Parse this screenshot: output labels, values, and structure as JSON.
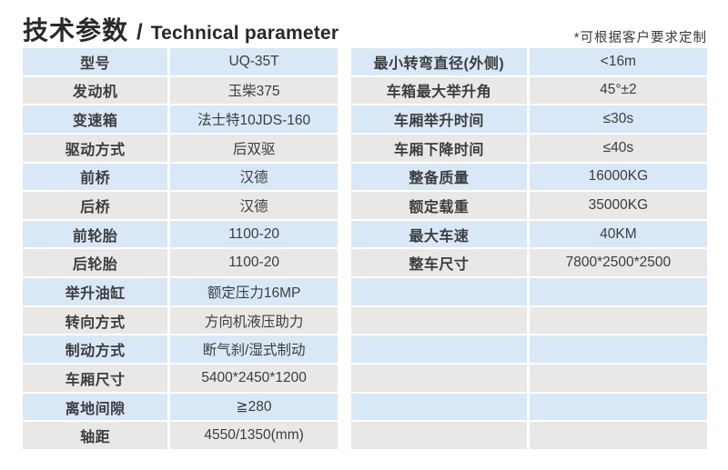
{
  "header": {
    "title_zh": "技术参数",
    "title_sep": "/",
    "title_en": "Technical parameter",
    "note": "*可根据客户要求定制"
  },
  "colors": {
    "row_odd_blue": "#d9e8f6",
    "row_even_gray": "#e9e8e6",
    "text": "#3d3d3d",
    "title": "#2b2826"
  },
  "left_table": {
    "rows": [
      {
        "label": "型号",
        "value": "UQ-35T"
      },
      {
        "label": "发动机",
        "value": "玉柴375"
      },
      {
        "label": "变速箱",
        "value": "法士特10JDS-160"
      },
      {
        "label": "驱动方式",
        "value": "后双驱"
      },
      {
        "label": "前桥",
        "value": "汉德"
      },
      {
        "label": "后桥",
        "value": "汉德"
      },
      {
        "label": "前轮胎",
        "value": "1100-20"
      },
      {
        "label": "后轮胎",
        "value": "1100-20"
      },
      {
        "label": "举升油缸",
        "value": "额定压力16MP"
      },
      {
        "label": "转向方式",
        "value": "方向机液压助力"
      },
      {
        "label": "制动方式",
        "value": "断气刹/湿式制动"
      },
      {
        "label": "车厢尺寸",
        "value": "5400*2450*1200"
      },
      {
        "label": "离地间隙",
        "value": "≧280"
      },
      {
        "label": "轴距",
        "value": "4550/1350(mm)"
      }
    ]
  },
  "right_table": {
    "rows": [
      {
        "label": "最小转弯直径(外侧)",
        "value": "<16m"
      },
      {
        "label": "车箱最大举升角",
        "value": "45°±2"
      },
      {
        "label": "车厢举升时间",
        "value": "≤30s"
      },
      {
        "label": "车厢下降时间",
        "value": "≤40s"
      },
      {
        "label": "整备质量",
        "value": "16000KG"
      },
      {
        "label": "额定载重",
        "value": "35000KG"
      },
      {
        "label": "最大车速",
        "value": "40KM"
      },
      {
        "label": "整车尺寸",
        "value": "7800*2500*2500"
      },
      {
        "label": "",
        "value": ""
      },
      {
        "label": "",
        "value": ""
      },
      {
        "label": "",
        "value": ""
      },
      {
        "label": "",
        "value": ""
      },
      {
        "label": "",
        "value": ""
      },
      {
        "label": "",
        "value": ""
      }
    ]
  }
}
